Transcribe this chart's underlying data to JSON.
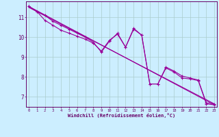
{
  "xlabel": "Windchill (Refroidissement éolien,°C)",
  "bg_color": "#cceeff",
  "line_color": "#990099",
  "grid_color": "#aacccc",
  "axis_color": "#660066",
  "spine_color": "#660066",
  "x_ticks": [
    0,
    1,
    2,
    3,
    4,
    5,
    6,
    7,
    8,
    9,
    10,
    11,
    12,
    13,
    14,
    15,
    16,
    17,
    18,
    19,
    20,
    21,
    22,
    23
  ],
  "y_ticks": [
    7,
    8,
    9,
    10,
    11
  ],
  "ylim": [
    6.5,
    11.8
  ],
  "xlim": [
    -0.3,
    23.3
  ],
  "series1_x": [
    0,
    1,
    2,
    3,
    4,
    5,
    6,
    7,
    8,
    9,
    10,
    11,
    12,
    13,
    14,
    15,
    16,
    17,
    18,
    19,
    20,
    21,
    22,
    23
  ],
  "series1_y": [
    11.55,
    11.3,
    10.85,
    10.6,
    10.35,
    10.2,
    10.05,
    9.9,
    9.7,
    9.3,
    9.85,
    10.15,
    9.5,
    10.4,
    10.1,
    7.65,
    7.65,
    8.45,
    8.25,
    7.95,
    7.9,
    7.82,
    6.65,
    6.6
  ],
  "series2_x": [
    0,
    1,
    2,
    3,
    4,
    5,
    6,
    7,
    8,
    9,
    10,
    11,
    12,
    13,
    14,
    15,
    16,
    17,
    18,
    19,
    20,
    21,
    22,
    23
  ],
  "series2_y": [
    11.55,
    11.3,
    11.1,
    10.8,
    10.6,
    10.4,
    10.2,
    10.0,
    9.75,
    9.25,
    9.8,
    10.2,
    9.5,
    10.45,
    10.1,
    7.65,
    7.65,
    8.5,
    8.3,
    8.05,
    7.95,
    7.85,
    6.7,
    6.65
  ],
  "trend1_x": [
    0,
    23
  ],
  "trend1_y": [
    11.55,
    6.6
  ],
  "trend2_x": [
    0,
    23
  ],
  "trend2_y": [
    11.5,
    6.65
  ]
}
